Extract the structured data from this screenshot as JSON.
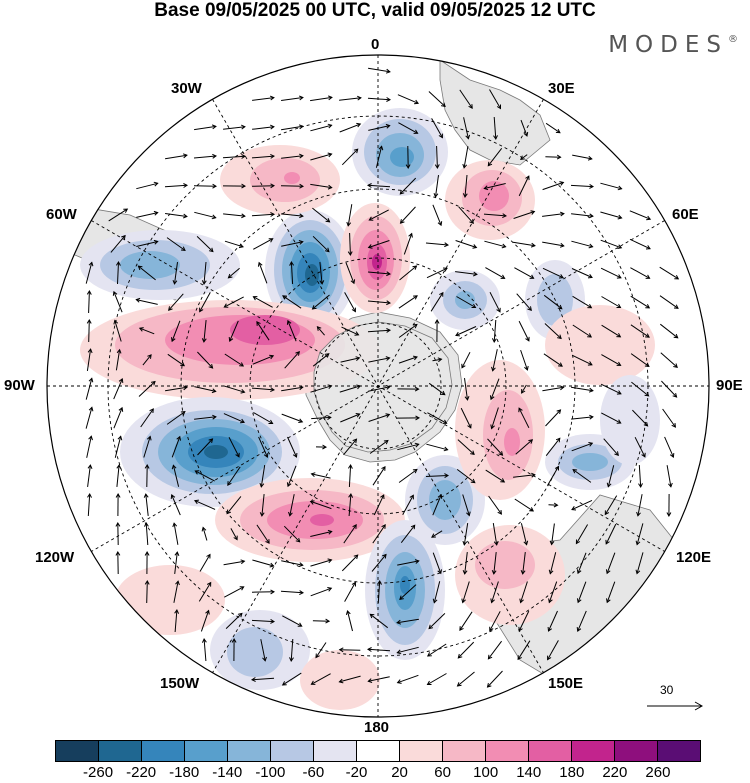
{
  "title": "Base 09/05/2025 00 UTC, valid 09/05/2025 12 UTC",
  "brand": {
    "name": "MODES",
    "mark": "®"
  },
  "map": {
    "projection": "south-polar-stereographic",
    "longitude_labels": {
      "top": "0",
      "bottom": "180",
      "left": "90W",
      "right": "90E",
      "w30": "30W",
      "w60": "60W",
      "w120": "120W",
      "w150": "150W",
      "e30": "30E",
      "e60": "60E",
      "e120": "120E",
      "e150": "150E"
    },
    "reference_vector_label": "30",
    "colors": {
      "land": "#e6e6e6",
      "coast": "#7a7a7a",
      "grid": "#000000",
      "arrows": "#000000"
    }
  },
  "colorbar": {
    "tick_labels": [
      "-260",
      "-220",
      "-180",
      "-140",
      "-100",
      "-60",
      "-20",
      "20",
      "60",
      "100",
      "140",
      "180",
      "220",
      "260"
    ],
    "colors": [
      "#163e5d",
      "#1f6791",
      "#3585bb",
      "#589fcc",
      "#86b5d9",
      "#b7c8e4",
      "#e4e4f1",
      "#ffffff",
      "#fadbda",
      "#f6b8c6",
      "#f28db3",
      "#e35fa3",
      "#c2248d",
      "#8e0f7d",
      "#5a0d74"
    ]
  }
}
